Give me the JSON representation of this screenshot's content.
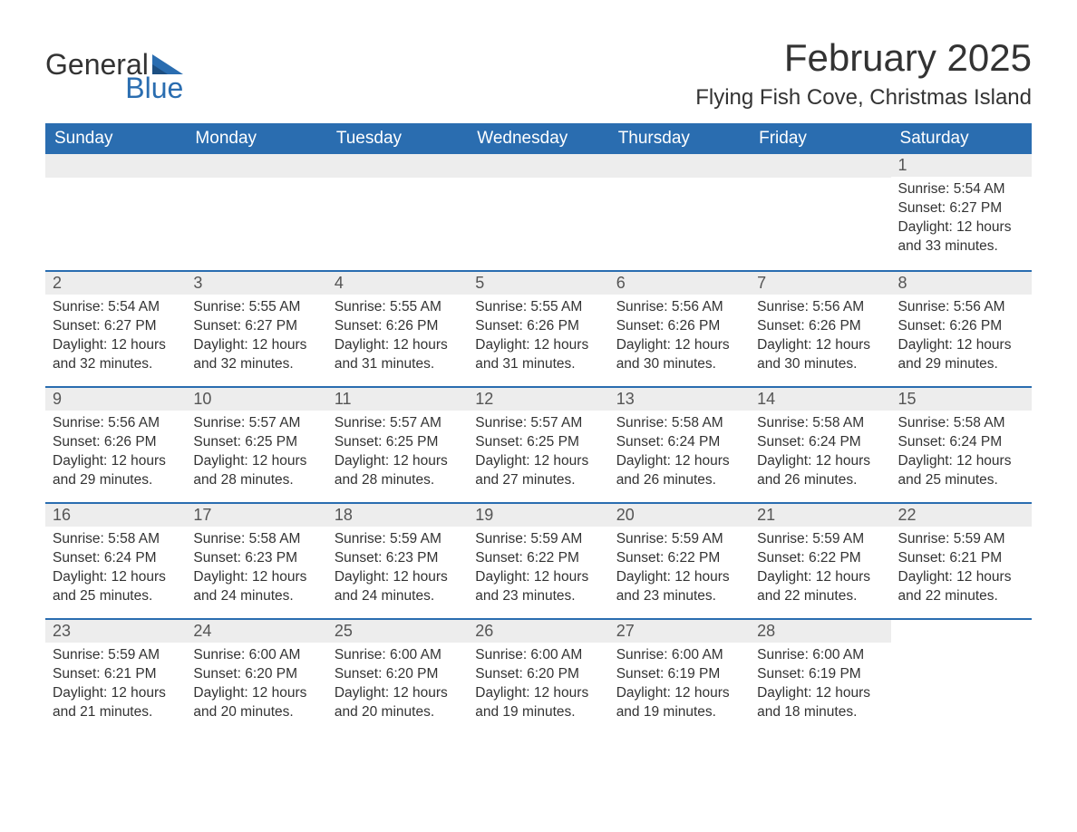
{
  "logo": {
    "line1": "General",
    "line2": "Blue",
    "color1": "#333333",
    "color2": "#2a6db0"
  },
  "title": {
    "month": "February 2025",
    "location": "Flying Fish Cove, Christmas Island"
  },
  "calendar": {
    "header_bg": "#2a6db0",
    "header_fg": "#ffffff",
    "daynum_bg": "#ededed",
    "border_color": "#2a6db0",
    "text_color": "#333333",
    "weekdays": [
      "Sunday",
      "Monday",
      "Tuesday",
      "Wednesday",
      "Thursday",
      "Friday",
      "Saturday"
    ],
    "labels": {
      "sunrise": "Sunrise:",
      "sunset": "Sunset:",
      "daylight": "Daylight:"
    },
    "weeks": [
      [
        null,
        null,
        null,
        null,
        null,
        null,
        {
          "d": "1",
          "sr": "5:54 AM",
          "ss": "6:27 PM",
          "dl": "12 hours and 33 minutes."
        }
      ],
      [
        {
          "d": "2",
          "sr": "5:54 AM",
          "ss": "6:27 PM",
          "dl": "12 hours and 32 minutes."
        },
        {
          "d": "3",
          "sr": "5:55 AM",
          "ss": "6:27 PM",
          "dl": "12 hours and 32 minutes."
        },
        {
          "d": "4",
          "sr": "5:55 AM",
          "ss": "6:26 PM",
          "dl": "12 hours and 31 minutes."
        },
        {
          "d": "5",
          "sr": "5:55 AM",
          "ss": "6:26 PM",
          "dl": "12 hours and 31 minutes."
        },
        {
          "d": "6",
          "sr": "5:56 AM",
          "ss": "6:26 PM",
          "dl": "12 hours and 30 minutes."
        },
        {
          "d": "7",
          "sr": "5:56 AM",
          "ss": "6:26 PM",
          "dl": "12 hours and 30 minutes."
        },
        {
          "d": "8",
          "sr": "5:56 AM",
          "ss": "6:26 PM",
          "dl": "12 hours and 29 minutes."
        }
      ],
      [
        {
          "d": "9",
          "sr": "5:56 AM",
          "ss": "6:26 PM",
          "dl": "12 hours and 29 minutes."
        },
        {
          "d": "10",
          "sr": "5:57 AM",
          "ss": "6:25 PM",
          "dl": "12 hours and 28 minutes."
        },
        {
          "d": "11",
          "sr": "5:57 AM",
          "ss": "6:25 PM",
          "dl": "12 hours and 28 minutes."
        },
        {
          "d": "12",
          "sr": "5:57 AM",
          "ss": "6:25 PM",
          "dl": "12 hours and 27 minutes."
        },
        {
          "d": "13",
          "sr": "5:58 AM",
          "ss": "6:24 PM",
          "dl": "12 hours and 26 minutes."
        },
        {
          "d": "14",
          "sr": "5:58 AM",
          "ss": "6:24 PM",
          "dl": "12 hours and 26 minutes."
        },
        {
          "d": "15",
          "sr": "5:58 AM",
          "ss": "6:24 PM",
          "dl": "12 hours and 25 minutes."
        }
      ],
      [
        {
          "d": "16",
          "sr": "5:58 AM",
          "ss": "6:24 PM",
          "dl": "12 hours and 25 minutes."
        },
        {
          "d": "17",
          "sr": "5:58 AM",
          "ss": "6:23 PM",
          "dl": "12 hours and 24 minutes."
        },
        {
          "d": "18",
          "sr": "5:59 AM",
          "ss": "6:23 PM",
          "dl": "12 hours and 24 minutes."
        },
        {
          "d": "19",
          "sr": "5:59 AM",
          "ss": "6:22 PM",
          "dl": "12 hours and 23 minutes."
        },
        {
          "d": "20",
          "sr": "5:59 AM",
          "ss": "6:22 PM",
          "dl": "12 hours and 23 minutes."
        },
        {
          "d": "21",
          "sr": "5:59 AM",
          "ss": "6:22 PM",
          "dl": "12 hours and 22 minutes."
        },
        {
          "d": "22",
          "sr": "5:59 AM",
          "ss": "6:21 PM",
          "dl": "12 hours and 22 minutes."
        }
      ],
      [
        {
          "d": "23",
          "sr": "5:59 AM",
          "ss": "6:21 PM",
          "dl": "12 hours and 21 minutes."
        },
        {
          "d": "24",
          "sr": "6:00 AM",
          "ss": "6:20 PM",
          "dl": "12 hours and 20 minutes."
        },
        {
          "d": "25",
          "sr": "6:00 AM",
          "ss": "6:20 PM",
          "dl": "12 hours and 20 minutes."
        },
        {
          "d": "26",
          "sr": "6:00 AM",
          "ss": "6:20 PM",
          "dl": "12 hours and 19 minutes."
        },
        {
          "d": "27",
          "sr": "6:00 AM",
          "ss": "6:19 PM",
          "dl": "12 hours and 19 minutes."
        },
        {
          "d": "28",
          "sr": "6:00 AM",
          "ss": "6:19 PM",
          "dl": "12 hours and 18 minutes."
        },
        null
      ]
    ]
  }
}
